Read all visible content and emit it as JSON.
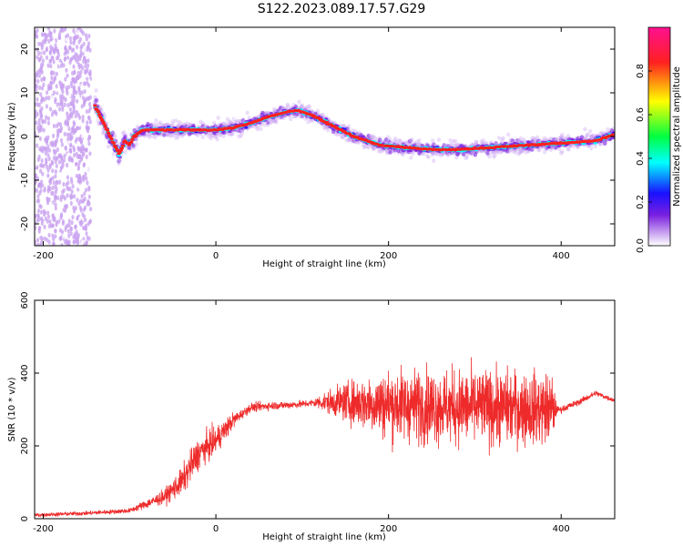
{
  "figure_title": "S122.2023.089.17.57.G29",
  "chart_data": [
    {
      "type": "heatmap",
      "xlabel": "Height of straight line (km)",
      "ylabel": "Frequency (Hz)",
      "xlim": [
        -210,
        462
      ],
      "ylim": [
        -25,
        25
      ],
      "x_ticks": [
        -200,
        0,
        200,
        400
      ],
      "y_ticks": [
        -20,
        -10,
        0,
        10,
        20
      ],
      "colorbar": {
        "label": "Normalized spectral amplitude",
        "ticks": [
          0.0,
          0.2,
          0.4,
          0.6,
          0.8
        ],
        "range": [
          0.0,
          1.0
        ],
        "colormap": [
          "#ffffff",
          "#c8a0f0",
          "#7a20e0",
          "#1a10ff",
          "#00ffff",
          "#00ff40",
          "#ffff00",
          "#ff2020",
          "#ff1090"
        ]
      },
      "ridge": {
        "x": [
          -140,
          -130,
          -120,
          -112,
          -105,
          -100,
          -95,
          -85,
          -70,
          -50,
          0,
          20,
          40,
          60,
          80,
          95,
          110,
          130,
          160,
          190,
          220,
          250,
          280,
          320,
          360,
          400,
          440,
          462
        ],
        "frequency": [
          7,
          3,
          -1,
          -4,
          -1,
          -2,
          0,
          1.5,
          1.5,
          1.5,
          1.5,
          2,
          3,
          4.5,
          5.5,
          6,
          5,
          3,
          0,
          -2,
          -2.5,
          -3,
          -3,
          -2.5,
          -2,
          -1.5,
          -1,
          0.5
        ]
      },
      "noise_band_x": [
        -210,
        -145
      ]
    },
    {
      "type": "line",
      "xlabel": "Height of straight line (km)",
      "ylabel": "SNR (10 * v/v)",
      "xlim": [
        -210,
        462
      ],
      "ylim": [
        0,
        600
      ],
      "x_ticks": [
        -200,
        0,
        200,
        400
      ],
      "y_ticks": [
        0,
        200,
        400,
        600
      ],
      "color": "#ee2a2a",
      "baseline": {
        "x": [
          -210,
          -150,
          -100,
          -60,
          -40,
          -20,
          0,
          20,
          40,
          60,
          80,
          100,
          120,
          150,
          200,
          250,
          300,
          350,
          390,
          400,
          420,
          440,
          462
        ],
        "y": [
          10,
          15,
          22,
          60,
          100,
          180,
          215,
          270,
          305,
          310,
          312,
          315,
          320,
          320,
          315,
          310,
          305,
          305,
          300,
          300,
          320,
          345,
          325
        ]
      },
      "spread": {
        "x": [
          -210,
          -100,
          -60,
          -30,
          0,
          30,
          110,
          150,
          200,
          300,
          390,
          395,
          462
        ],
        "y": [
          8,
          10,
          30,
          70,
          60,
          20,
          15,
          80,
          150,
          160,
          150,
          15,
          10
        ]
      }
    }
  ]
}
